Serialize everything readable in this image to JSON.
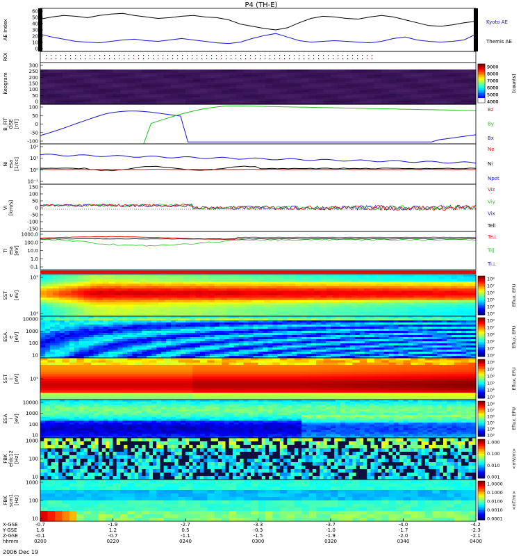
{
  "chart_data": {
    "type": "stack-plot",
    "title": "P4 (TH-E)",
    "time_ticks": [
      "0200",
      "0220",
      "0240",
      "0300",
      "0320",
      "0340",
      "0400"
    ],
    "footer_rows": [
      {
        "label": "X-GSE",
        "values": [
          "-0.7",
          "-1.9",
          "-2.7",
          "-3.3",
          "-3.7",
          "-4.0",
          "-4.2"
        ]
      },
      {
        "label": "Y-GSE",
        "values": [
          "1.6",
          "1.2",
          "0.5",
          "-0.3",
          "-1.0",
          "-1.7",
          "-2.3"
        ]
      },
      {
        "label": "Z-GSE",
        "values": [
          "-0.1",
          "-0.7",
          "-1.1",
          "-1.5",
          "-1.9",
          "-2.0",
          "-2.1"
        ]
      },
      {
        "label": "hhmm",
        "values": [
          "0200",
          "0220",
          "0240",
          "0300",
          "0320",
          "0340",
          "0400"
        ]
      }
    ],
    "date_label": "2006 Dec 19",
    "panels": [
      {
        "id": "ae",
        "ylabel": "AE Index",
        "yticks": [
          "60",
          "50",
          "40",
          "30",
          "20",
          "10",
          "0"
        ],
        "series": [
          {
            "name": "Kyoto AE",
            "color": "#000000",
            "values": [
              45,
              48,
              50,
              49,
              47,
              50,
              52,
              53,
              50,
              48,
              46,
              47,
              49,
              50,
              48,
              47,
              44,
              38,
              35,
              32,
              30,
              33,
              40,
              46,
              49,
              48,
              46,
              45,
              48,
              50,
              48,
              44,
              40,
              36,
              35,
              37,
              40,
              42
            ]
          },
          {
            "name": "Themis AE",
            "color": "#1414c8",
            "values": [
              24,
              20,
              17,
              14,
              13,
              12,
              14,
              16,
              17,
              15,
              14,
              16,
              18,
              16,
              14,
              12,
              11,
              13,
              18,
              22,
              25,
              20,
              15,
              13,
              14,
              15,
              14,
              13,
              12,
              14,
              18,
              20,
              16,
              14,
              13,
              14,
              16,
              24
            ]
          }
        ]
      },
      {
        "id": "roi",
        "ylabel": "ROI"
      },
      {
        "id": "keogram",
        "ylabel": "Keogram",
        "yticks": [
          "300",
          "250",
          "200",
          "150",
          "100",
          "50",
          "0"
        ],
        "colorbar": {
          "ticks": [
            "9000",
            "8000",
            "7000",
            "6000",
            "5000",
            "4000"
          ],
          "unit": "[counts]"
        }
      },
      {
        "id": "bfield",
        "ylabel": "B_FIT\nGSE\n[nT]",
        "yticks": [
          "100",
          "50",
          "0",
          "-50",
          "-100"
        ],
        "legend": [
          {
            "name": "Bz",
            "color": "#e01010"
          },
          {
            "name": "By",
            "color": "#20c020"
          },
          {
            "name": "Bx",
            "color": "#1414c8"
          }
        ]
      },
      {
        "id": "density",
        "ylabel": "Ni\nesa\n[1/cc]",
        "yticks": [
          "10²",
          "10¹",
          "10⁰",
          "10⁻¹"
        ],
        "legend": [
          {
            "name": "Ne",
            "color": "#e01010"
          },
          {
            "name": "Ni",
            "color": "#000000"
          },
          {
            "name": "Npot",
            "color": "#1414c8"
          }
        ]
      },
      {
        "id": "velocity",
        "ylabel": "Vi\n[km/s]",
        "yticks": [
          "150",
          "100",
          "50",
          "0",
          "-50",
          "-100",
          "-150"
        ],
        "legend": [
          {
            "name": "Viz",
            "color": "#e01010"
          },
          {
            "name": "Viy",
            "color": "#20c020"
          },
          {
            "name": "Vix",
            "color": "#1414c8"
          },
          {
            "name": "Tell",
            "color": "#000000"
          }
        ]
      },
      {
        "id": "temp",
        "ylabel": "Ti\nesa\n[eV]",
        "yticks": [
          "1000.0",
          "100.0",
          "10.0",
          "1.0",
          "0.1"
        ],
        "legend": [
          {
            "name": "Te⊥",
            "color": "#e01010"
          },
          {
            "name": "Ti∥",
            "color": "#20c020"
          },
          {
            "name": "Ti⊥",
            "color": "#1414c8"
          }
        ]
      },
      {
        "id": "sst_e",
        "ylabel": "SST\ne\n[eV]",
        "yticks": [
          "10⁵",
          "10⁴"
        ],
        "colorbar": {
          "ticks": [
            "10⁸",
            "10⁷",
            "10⁶",
            "10⁵",
            "10⁴",
            "10³"
          ],
          "unit": "Eflux, EFU"
        }
      },
      {
        "id": "esa_e",
        "ylabel": "ESA\ne\n[eV]",
        "yticks": [
          "10000",
          "1000",
          "100",
          "10"
        ],
        "colorbar": {
          "ticks": [
            "10⁸",
            "10⁷",
            "10⁶",
            "10⁵",
            "10⁴",
            "10³"
          ],
          "unit": "Eflux, EFU"
        }
      },
      {
        "id": "sst_i",
        "ylabel": "SST\ni\n[eV]",
        "yticks": [
          "10⁵"
        ],
        "colorbar": {
          "ticks": [
            "10⁸",
            "10⁷",
            "10⁶",
            "10⁵",
            "10⁴",
            "10³"
          ],
          "unit": "Eflux, EFU"
        }
      },
      {
        "id": "esa_i",
        "ylabel": "ESA\ni\n[eV]",
        "yticks": [
          "10000",
          "1000",
          "100",
          "10"
        ],
        "colorbar": {
          "ticks": [
            "10⁸",
            "10⁷",
            "10⁶",
            "10⁵",
            "10⁴",
            "10³"
          ],
          "unit": "Eflux, EFU"
        }
      },
      {
        "id": "fbk1",
        "ylabel": "FBK\nefdc12\n[Hz]",
        "yticks": [
          "1000",
          "100",
          "10"
        ],
        "colorbar": {
          "ticks": [
            "1.000",
            "0.100",
            "0.010",
            "0.001"
          ],
          "unit": "<mV/m>"
        }
      },
      {
        "id": "fbk2",
        "ylabel": "FBK\nscm1\n[Hz]",
        "yticks": [
          "1000",
          "100",
          "10"
        ],
        "colorbar": {
          "ticks": [
            "1.0000",
            "0.1000",
            "0.0100",
            "0.0010",
            "0.0001"
          ],
          "unit": "<nT/m>"
        }
      }
    ]
  }
}
